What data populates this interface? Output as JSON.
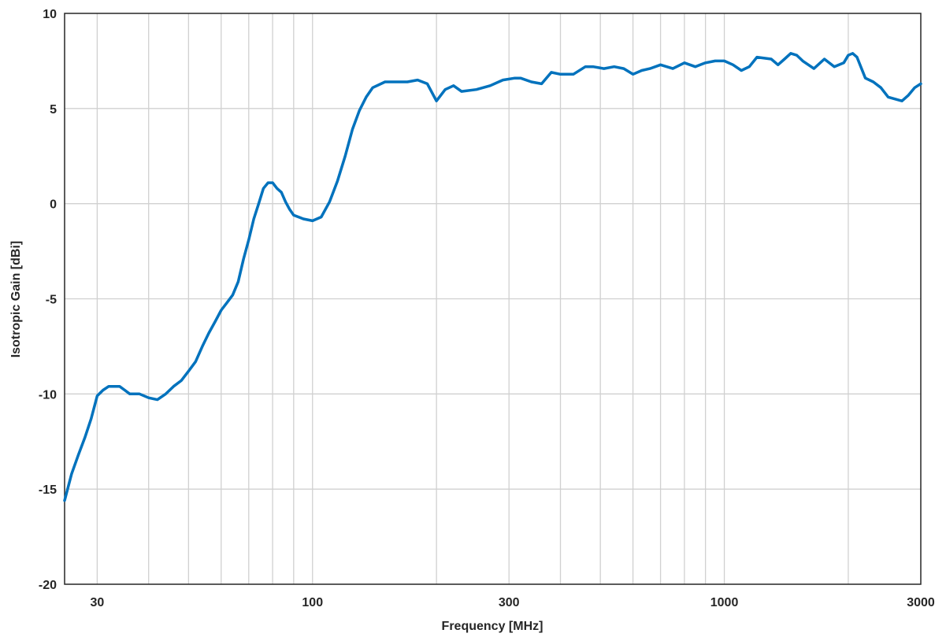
{
  "chart_data": {
    "type": "line",
    "title": "",
    "xlabel": "Frequency [MHz]",
    "ylabel": "Isotropic Gain [dBi]",
    "xscale": "log",
    "xlim": [
      25,
      3000
    ],
    "ylim": [
      -20,
      10
    ],
    "grid": true,
    "xticks": [
      {
        "value": 30,
        "label": "30"
      },
      {
        "value": 100,
        "label": "100"
      },
      {
        "value": 300,
        "label": "300"
      },
      {
        "value": 1000,
        "label": "1000"
      },
      {
        "value": 3000,
        "label": "3000"
      }
    ],
    "yticks": [
      {
        "value": -20,
        "label": "-20"
      },
      {
        "value": -15,
        "label": "-15"
      },
      {
        "value": -10,
        "label": "-10"
      },
      {
        "value": -5,
        "label": "-5"
      },
      {
        "value": 0,
        "label": "0"
      },
      {
        "value": 5,
        "label": "5"
      },
      {
        "value": 10,
        "label": "10"
      }
    ],
    "series": [
      {
        "color": "#0072BD",
        "x": [
          25,
          26,
          27,
          28,
          29,
          30,
          31,
          32,
          33,
          34,
          35,
          36,
          37,
          38,
          40,
          42,
          44,
          46,
          48,
          50,
          52,
          54,
          56,
          58,
          60,
          62,
          64,
          66,
          68,
          70,
          72,
          74,
          76,
          78,
          80,
          82,
          84,
          86,
          88,
          90,
          95,
          100,
          105,
          110,
          115,
          120,
          125,
          130,
          135,
          140,
          150,
          160,
          170,
          180,
          190,
          200,
          210,
          220,
          230,
          250,
          270,
          290,
          310,
          320,
          340,
          360,
          380,
          400,
          430,
          460,
          480,
          510,
          540,
          570,
          600,
          630,
          660,
          700,
          750,
          800,
          850,
          900,
          950,
          1000,
          1050,
          1100,
          1150,
          1200,
          1300,
          1350,
          1400,
          1450,
          1500,
          1550,
          1650,
          1750,
          1850,
          1950,
          2000,
          2050,
          2100,
          2200,
          2300,
          2400,
          2500,
          2600,
          2700,
          2800,
          2900,
          3000
        ],
        "y": [
          -15.6,
          -14.2,
          -13.2,
          -12.3,
          -11.3,
          -10.1,
          -9.8,
          -9.6,
          -9.6,
          -9.6,
          -9.8,
          -10.0,
          -10.0,
          -10.0,
          -10.2,
          -10.3,
          -10.0,
          -9.6,
          -9.3,
          -8.8,
          -8.3,
          -7.5,
          -6.8,
          -6.2,
          -5.6,
          -5.2,
          -4.8,
          -4.1,
          -2.9,
          -1.9,
          -0.8,
          0.0,
          0.8,
          1.1,
          1.1,
          0.8,
          0.6,
          0.1,
          -0.3,
          -0.6,
          -0.8,
          -0.9,
          -0.7,
          0.1,
          1.2,
          2.5,
          3.9,
          4.9,
          5.6,
          6.1,
          6.4,
          6.4,
          6.4,
          6.5,
          6.3,
          5.4,
          6.0,
          6.2,
          5.9,
          6.0,
          6.2,
          6.5,
          6.6,
          6.6,
          6.4,
          6.3,
          6.9,
          6.8,
          6.8,
          7.2,
          7.2,
          7.1,
          7.2,
          7.1,
          6.8,
          7.0,
          7.1,
          7.3,
          7.1,
          7.4,
          7.2,
          7.4,
          7.5,
          7.5,
          7.3,
          7.0,
          7.2,
          7.7,
          7.6,
          7.3,
          7.6,
          7.9,
          7.8,
          7.5,
          7.1,
          7.6,
          7.2,
          7.4,
          7.8,
          7.9,
          7.7,
          6.6,
          6.4,
          6.1,
          5.6,
          5.5,
          5.4,
          5.7,
          6.1,
          6.3
        ]
      }
    ]
  }
}
